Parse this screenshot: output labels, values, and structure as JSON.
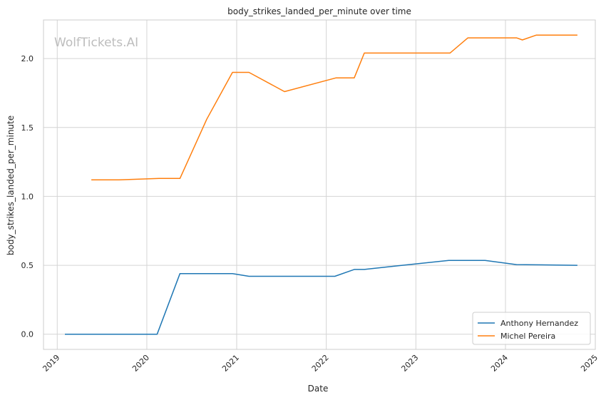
{
  "chart_data": {
    "type": "line",
    "title": "body_strikes_landed_per_minute over time",
    "xlabel": "Date",
    "ylabel": "body_strikes_landed_per_minute",
    "watermark": "WolfTickets.AI",
    "x_ticks": [
      "2019",
      "2020",
      "2021",
      "2022",
      "2023",
      "2024",
      "2025"
    ],
    "y_ticks": [
      "0.0",
      "0.5",
      "1.0",
      "1.5",
      "2.0"
    ],
    "xlim": [
      "2018-11-06",
      "2025-01-01"
    ],
    "ylim": [
      -0.11,
      2.28
    ],
    "grid": true,
    "legend_position": "lower-right",
    "series": [
      {
        "name": "Anthony Hernandez",
        "color": "#1f77b4",
        "points": [
          [
            "2019-02-01",
            0.0
          ],
          [
            "2020-02-12",
            0.0
          ],
          [
            "2020-05-15",
            0.44
          ],
          [
            "2020-12-15",
            0.44
          ],
          [
            "2021-02-20",
            0.42
          ],
          [
            "2022-02-05",
            0.42
          ],
          [
            "2022-04-25",
            0.47
          ],
          [
            "2022-06-05",
            0.47
          ],
          [
            "2022-10-10",
            0.495
          ],
          [
            "2023-05-15",
            0.535
          ],
          [
            "2023-10-10",
            0.535
          ],
          [
            "2024-02-15",
            0.505
          ],
          [
            "2024-10-20",
            0.5
          ]
        ]
      },
      {
        "name": "Michel Pereira",
        "color": "#ff7f0e",
        "points": [
          [
            "2019-05-20",
            1.12
          ],
          [
            "2019-09-10",
            1.12
          ],
          [
            "2020-02-20",
            1.13
          ],
          [
            "2020-05-15",
            1.13
          ],
          [
            "2020-09-01",
            1.56
          ],
          [
            "2020-12-15",
            1.9
          ],
          [
            "2021-02-20",
            1.9
          ],
          [
            "2021-07-15",
            1.76
          ],
          [
            "2022-02-10",
            1.86
          ],
          [
            "2022-04-25",
            1.86
          ],
          [
            "2022-06-05",
            2.04
          ],
          [
            "2023-05-20",
            2.04
          ],
          [
            "2023-08-01",
            2.15
          ],
          [
            "2024-02-15",
            2.15
          ],
          [
            "2024-03-10",
            2.135
          ],
          [
            "2024-05-05",
            2.17
          ],
          [
            "2024-10-20",
            2.17
          ]
        ]
      }
    ]
  }
}
